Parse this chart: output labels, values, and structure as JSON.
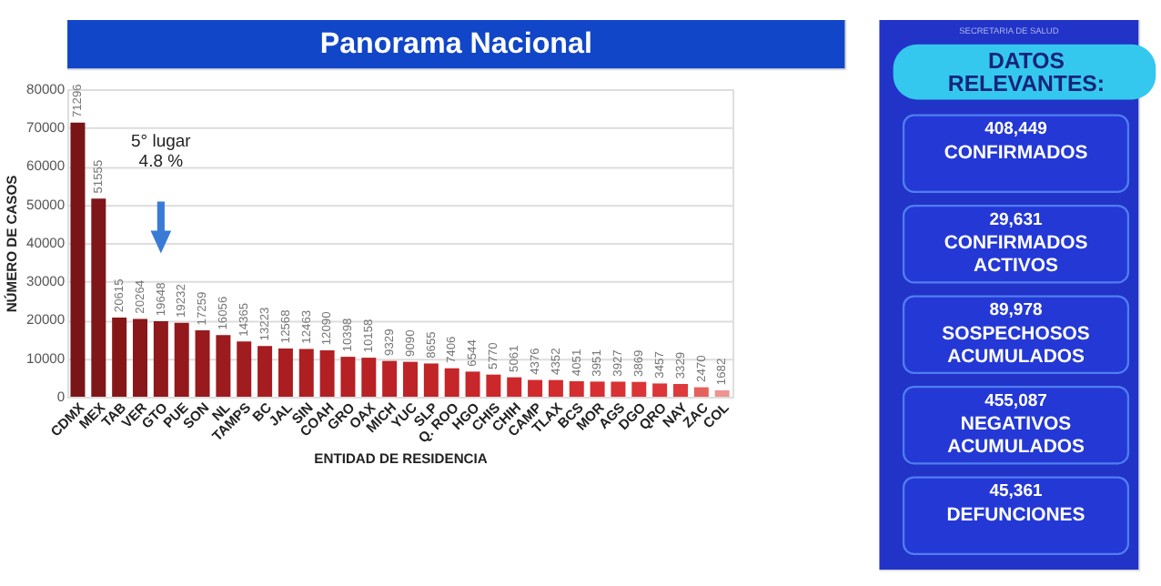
{
  "chart_data": [
    {
      "type": "bar",
      "title": "Panorama Nacional",
      "xlabel": "ENTIDAD DE RESIDENCIA",
      "ylabel": "NÚMERO DE CASOS",
      "categories": [
        "CDMX",
        "MEX",
        "TAB",
        "VER",
        "GTO",
        "PUE",
        "SON",
        "NL",
        "TAMPS",
        "BC",
        "JAL",
        "SIN",
        "COAH",
        "GRO",
        "OAX",
        "MICH",
        "YUC",
        "SLP",
        "Q. ROO",
        "HGO",
        "CHIS",
        "CHIH",
        "CAMP",
        "TLAX",
        "BCS",
        "MOR",
        "AGS",
        "DGO",
        "QRO",
        "NAY",
        "ZAC",
        "COL"
      ],
      "values": [
        71296,
        51555,
        20615,
        20264,
        19648,
        19232,
        17259,
        16056,
        14365,
        13223,
        12568,
        12463,
        12090,
        10398,
        10158,
        9329,
        9090,
        8655,
        7406,
        6544,
        5770,
        5061,
        4376,
        4352,
        4051,
        3951,
        3927,
        3869,
        3457,
        3329,
        2470,
        1682
      ],
      "colors": [
        "#7a1517",
        "#7f1618",
        "#861719",
        "#8a181a",
        "#8f191b",
        "#93191c",
        "#981a1d",
        "#9c1b1e",
        "#a11c1f",
        "#a51d20",
        "#aa1e21",
        "#ae1f22",
        "#b22023",
        "#b52124",
        "#b82225",
        "#bb2326",
        "#be2427",
        "#c12528",
        "#c42629",
        "#c7272a",
        "#ca282b",
        "#cd292c",
        "#d02a2d",
        "#d22c2e",
        "#d42e30",
        "#d63032",
        "#d83234",
        "#da3436",
        "#dc3638",
        "#de3a3c",
        "#e5615c",
        "#ee9393"
      ],
      "data_labels": true,
      "ylim": [
        0,
        80000
      ],
      "yticks": [
        0,
        10000,
        20000,
        30000,
        40000,
        50000,
        60000,
        70000,
        80000
      ],
      "grid": "y",
      "annotations": [
        "5° lugar\n4.8 %"
      ]
    },
    {
      "type": "other",
      "title": "DATOS RELEVANTES:",
      "annotations": [
        "SECRETARIA DE SALUD"
      ],
      "categories": [
        "CONFIRMADOS",
        "CONFIRMADOS ACTIVOS",
        "SOSPECHOSOS ACUMULADOS",
        "NEGATIVOS ACUMULADOS",
        "DEFUNCIONES"
      ],
      "values": [
        408449,
        29631,
        89978,
        455087,
        45361
      ],
      "value_labels": [
        "408,449",
        "29,631",
        "89,978",
        "455,087",
        "45,361"
      ]
    }
  ]
}
